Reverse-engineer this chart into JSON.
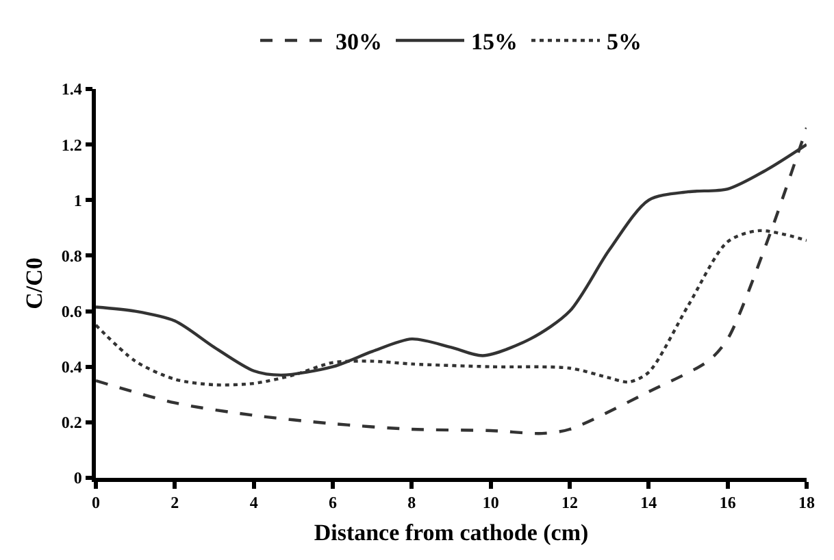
{
  "chart_data": {
    "type": "line",
    "xlabel": "Distance from cathode (cm)",
    "ylabel": "C/C0",
    "xlim": [
      0,
      18
    ],
    "xticks": [
      0,
      2,
      4,
      6,
      8,
      10,
      12,
      14,
      16,
      18
    ],
    "ylim": [
      0,
      1.4
    ],
    "yticks": [
      0,
      0.2,
      0.4,
      0.6,
      0.8,
      1,
      1.2,
      1.4
    ],
    "grid": false,
    "legend": "top",
    "marker": "none",
    "series": [
      {
        "name": "30%",
        "color": "#333333",
        "line_style": "dashed",
        "x": [
          0,
          2,
          4,
          6,
          8,
          10,
          11.3,
          12,
          14,
          15.5,
          16,
          17,
          18
        ],
        "values": [
          0.35,
          0.27,
          0.225,
          0.195,
          0.175,
          0.17,
          0.16,
          0.175,
          0.31,
          0.42,
          0.5,
          0.85,
          1.26
        ]
      },
      {
        "name": "15%",
        "color": "#333333",
        "line_style": "solid",
        "x": [
          0,
          1,
          2,
          3,
          4,
          4.7,
          6,
          7,
          8,
          9,
          9.8,
          11,
          12,
          13,
          14,
          15,
          16,
          17,
          18
        ],
        "values": [
          0.615,
          0.6,
          0.565,
          0.47,
          0.385,
          0.37,
          0.4,
          0.455,
          0.5,
          0.47,
          0.44,
          0.5,
          0.6,
          0.82,
          1.0,
          1.03,
          1.04,
          1.11,
          1.2
        ]
      },
      {
        "name": "5%",
        "color": "#333333",
        "line_style": "dotted",
        "x": [
          0,
          1,
          2,
          3,
          4,
          5,
          6,
          7,
          8,
          10,
          12,
          13,
          13.5,
          14,
          15,
          16,
          16.8,
          18
        ],
        "values": [
          0.55,
          0.42,
          0.355,
          0.335,
          0.34,
          0.37,
          0.415,
          0.42,
          0.41,
          0.4,
          0.395,
          0.36,
          0.345,
          0.38,
          0.62,
          0.85,
          0.89,
          0.855
        ]
      }
    ]
  }
}
